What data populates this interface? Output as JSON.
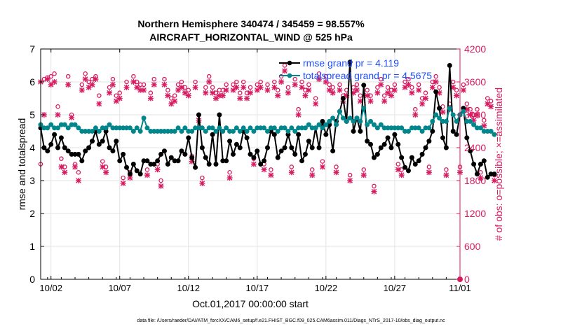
{
  "title_line1": "Northern Hemisphere 340474 / 345459 = 98.557%",
  "title_line2": "AIRCRAFT_HORIZONTAL_WIND @ 525 hPa",
  "footnote": "data file: /Users/raeder/DAI/ATM_forcXX/CAM6_setup/f.e21.FHIST_BGC.f09_025.CAM6assim.011/Diags_NTrS_2017-10/obs_diag_output.nc",
  "colors": {
    "rmse": "#000000",
    "spread": "#00868b",
    "obs": "#d81b60"
  },
  "chart_data": {
    "type": "line",
    "xlabel": "Oct.01,2017 00:00:00 start",
    "ylabel_left": "rmse and totalspread",
    "ylabel_right": "# of obs: o=possible; ×=assimilated",
    "x_range_days": [
      0.5,
      31
    ],
    "ylim_left": [
      0,
      7
    ],
    "ylim_right": [
      0,
      4200
    ],
    "x_ticks": [
      {
        "day": 1.25,
        "label": "10/02"
      },
      {
        "day": 6.25,
        "label": "10/07"
      },
      {
        "day": 11.25,
        "label": "10/12"
      },
      {
        "day": 16.25,
        "label": "10/17"
      },
      {
        "day": 21.25,
        "label": "10/22"
      },
      {
        "day": 26.25,
        "label": "10/27"
      },
      {
        "day": 31,
        "label": "11/01"
      }
    ],
    "y_ticks_left": [
      "0",
      "1",
      "2",
      "3",
      "4",
      "5",
      "6",
      "7"
    ],
    "y_ticks_right": [
      "0",
      "600",
      "1200",
      "1800",
      "2400",
      "3000",
      "3600",
      "4200"
    ],
    "legend_position": "top-right",
    "grid": true,
    "day_start": 0.5,
    "day_step": 0.25,
    "series": [
      {
        "name": "rmse grand pr = 4.119",
        "axis": "left",
        "values": [
          4.6,
          4.0,
          3.9,
          4.1,
          4.4,
          4.0,
          4.3,
          4.0,
          3.9,
          3.8,
          3.8,
          3.8,
          3.6,
          3.9,
          4.0,
          4.2,
          4.5,
          4.1,
          4.2,
          4.5,
          4.0,
          3.9,
          4.2,
          3.6,
          3.8,
          3.4,
          3.2,
          3.5,
          3.3,
          3.2,
          3.6,
          3.6,
          3.5,
          3.5,
          3.6,
          3.8,
          3.9,
          3.5,
          3.7,
          3.6,
          3.6,
          3.9,
          3.8,
          4.3,
          3.7,
          3.4,
          5.0,
          4.0,
          3.7,
          3.5,
          4.4,
          3.5,
          5.0,
          3.6,
          3.6,
          4.2,
          3.8,
          4.1,
          4.0,
          4.5,
          4.3,
          3.8,
          3.7,
          3.9,
          3.5,
          3.6,
          4.0,
          4.5,
          4.4,
          3.7,
          3.9,
          4.0,
          4.4,
          4.0,
          3.8,
          4.4,
          3.6,
          3.8,
          4.2,
          4.0,
          4.6,
          4.0,
          4.8,
          4.4,
          4.7,
          3.9,
          4.8,
          5.1,
          5.5,
          4.8,
          6.6,
          4.5,
          4.9,
          4.5,
          5.9,
          4.2,
          4.1,
          3.7,
          3.8,
          4.0,
          4.1,
          4.3,
          4.0,
          4.4,
          4.1,
          3.7,
          3.4,
          3.3,
          3.7,
          3.5,
          3.6,
          3.8,
          4.0,
          4.2,
          4.5,
          5.7,
          5.2,
          4.3,
          4.0,
          6.5,
          4.5,
          4.4,
          5.0,
          5.2,
          4.3,
          3.9,
          3.5,
          3.2,
          3.5,
          3.6,
          3.1,
          3.2,
          3.2
        ]
      },
      {
        "name": "totalspread grand pr = 4.5675",
        "axis": "left",
        "values": [
          4.7,
          4.6,
          4.6,
          4.7,
          4.6,
          4.6,
          4.7,
          4.7,
          4.6,
          4.7,
          4.7,
          4.6,
          4.5,
          4.5,
          4.5,
          4.5,
          4.6,
          4.5,
          4.6,
          4.6,
          4.7,
          4.6,
          4.6,
          4.6,
          4.6,
          4.6,
          4.6,
          4.5,
          4.6,
          4.5,
          4.9,
          4.6,
          4.5,
          4.5,
          4.5,
          4.5,
          4.5,
          4.5,
          4.5,
          4.5,
          4.6,
          4.5,
          4.6,
          4.5,
          4.5,
          4.6,
          4.6,
          4.6,
          4.5,
          4.6,
          4.6,
          4.5,
          4.6,
          4.5,
          4.6,
          4.5,
          4.5,
          4.6,
          4.5,
          4.6,
          4.5,
          4.6,
          4.5,
          4.6,
          4.6,
          4.6,
          4.5,
          4.6,
          4.6,
          4.5,
          4.6,
          4.6,
          4.5,
          4.6,
          4.5,
          4.6,
          4.6,
          4.6,
          4.7,
          4.6,
          4.6,
          4.7,
          4.6,
          4.7,
          4.8,
          4.9,
          4.7,
          5.1,
          4.9,
          4.8,
          4.9,
          4.8,
          4.9,
          4.8,
          5.2,
          4.7,
          4.8,
          4.7,
          4.6,
          4.7,
          4.6,
          4.6,
          4.6,
          4.6,
          4.6,
          4.6,
          4.5,
          4.5,
          4.6,
          4.6,
          4.6,
          4.5,
          4.6,
          4.6,
          4.8,
          5.0,
          4.9,
          4.8,
          4.8,
          5.2,
          5.0,
          4.8,
          5.0,
          5.1,
          4.8,
          4.8,
          4.7,
          4.6,
          4.6,
          4.5,
          4.5,
          4.5,
          4.4
        ]
      },
      {
        "name": "possible",
        "axis": "right",
        "marker": "o",
        "values": [
          2100,
          3650,
          3680,
          3700,
          3750,
          3150,
          2200,
          2050,
          3700,
          3000,
          2100,
          1950,
          3550,
          3750,
          3600,
          3650,
          3700,
          3350,
          2150,
          2050,
          3500,
          3650,
          3350,
          3400,
          1850,
          3600,
          1950,
          3700,
          3600,
          3550,
          3550,
          2000,
          3400,
          3650,
          2100,
          1800,
          3650,
          3450,
          3300,
          3350,
          3550,
          3600,
          3500,
          3450,
          2250,
          3600,
          3000,
          1850,
          3500,
          3700,
          3500,
          3400,
          3450,
          3450,
          3550,
          1950,
          3550,
          3600,
          3400,
          3600,
          3400,
          3500,
          2200,
          3550,
          3600,
          2100,
          3550,
          2000,
          3600,
          3450,
          3700,
          3900,
          3500,
          2050,
          3650,
          3100,
          3600,
          3450,
          3550,
          2000,
          3300,
          3750,
          2150,
          3700,
          3550,
          3500,
          2050,
          3550,
          3350,
          3450,
          1900,
          3500,
          3550,
          3350,
          2000,
          3450,
          3350,
          1700,
          3500,
          3650,
          3350,
          3500,
          3450,
          3550,
          2100,
          2000,
          3600,
          3650,
          3500,
          3100,
          3550,
          3300,
          3400,
          2050,
          3600,
          3700,
          3500,
          3150,
          2000,
          3200,
          3600,
          3450,
          2050,
          3550,
          3200,
          3100,
          3000,
          3100,
          1950,
          2900,
          3300,
          3250,
          1900
        ]
      },
      {
        "name": "assimilated",
        "axis": "right",
        "marker": "x",
        "values": [
          3600,
          3000,
          3650,
          3550,
          3600,
          3000,
          2050,
          1950,
          3550,
          2950,
          2050,
          1800,
          3450,
          3650,
          3500,
          3550,
          3650,
          3200,
          2050,
          1950,
          3400,
          3550,
          3250,
          3300,
          1750,
          3500,
          1850,
          3600,
          3500,
          3450,
          3450,
          1900,
          3300,
          3550,
          2000,
          1700,
          3550,
          3350,
          3200,
          3250,
          3450,
          3500,
          3400,
          3350,
          2150,
          3500,
          2900,
          1750,
          3400,
          3600,
          3400,
          3300,
          3350,
          3350,
          3450,
          1850,
          3450,
          3500,
          3300,
          3500,
          3300,
          3400,
          2100,
          3450,
          3500,
          2000,
          3450,
          1900,
          3500,
          3350,
          3600,
          3800,
          3400,
          1950,
          3550,
          3000,
          3500,
          3350,
          3450,
          1900,
          3200,
          3650,
          2050,
          3600,
          3450,
          3400,
          1950,
          3450,
          3250,
          3350,
          1800,
          3400,
          3450,
          3250,
          1900,
          3350,
          3250,
          1600,
          3400,
          3550,
          3250,
          3400,
          3350,
          3450,
          2000,
          1900,
          3500,
          3550,
          3400,
          3000,
          3450,
          3200,
          3300,
          1950,
          3500,
          3600,
          3400,
          3050,
          1900,
          3100,
          3500,
          3350,
          1950,
          3450,
          3100,
          3000,
          2900,
          3000,
          1850,
          2800,
          3200,
          3150,
          1800
        ]
      }
    ],
    "trailing_points": [
      {
        "x": 31,
        "value": 0,
        "axis": "right",
        "marker": "o"
      }
    ]
  }
}
